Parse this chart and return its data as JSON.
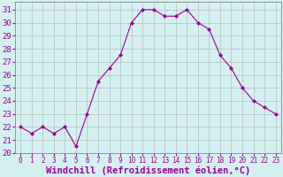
{
  "x": [
    0,
    1,
    2,
    3,
    4,
    5,
    6,
    7,
    8,
    9,
    10,
    11,
    12,
    13,
    14,
    15,
    16,
    17,
    18,
    19,
    20,
    21,
    22,
    23
  ],
  "y": [
    22,
    21.5,
    22,
    21.5,
    22,
    20.5,
    23,
    25.5,
    26.5,
    27.5,
    30,
    31,
    31,
    30.5,
    30.5,
    31,
    30,
    29.5,
    27.5,
    26.5,
    25,
    24,
    23.5,
    23
  ],
  "line_color": "#990099",
  "marker": "D",
  "markersize": 2,
  "linewidth": 0.8,
  "bg_color": "#d4f0f0",
  "grid_color": "#b0b0b0",
  "xlabel": "Windchill (Refroidissement éolien,°C)",
  "xlabel_fontsize": 7.5,
  "xlabel_bold": true,
  "xtick_fontsize": 5.5,
  "ytick_fontsize": 6.5,
  "ylim": [
    20,
    31.6
  ],
  "xlim": [
    -0.5,
    23.5
  ],
  "yticks": [
    20,
    21,
    22,
    23,
    24,
    25,
    26,
    27,
    28,
    29,
    30,
    31
  ]
}
